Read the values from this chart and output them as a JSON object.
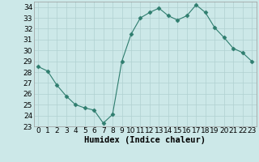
{
  "x": [
    0,
    1,
    2,
    3,
    4,
    5,
    6,
    7,
    8,
    9,
    10,
    11,
    12,
    13,
    14,
    15,
    16,
    17,
    18,
    19,
    20,
    21,
    22,
    23
  ],
  "y": [
    28.5,
    28.1,
    26.8,
    25.8,
    25.0,
    24.7,
    24.5,
    23.3,
    24.1,
    29.0,
    31.5,
    33.0,
    33.5,
    33.9,
    33.2,
    32.8,
    33.2,
    34.2,
    33.5,
    32.1,
    31.2,
    30.2,
    29.8,
    29.0
  ],
  "line_color": "#2e7d6e",
  "marker": "D",
  "marker_size": 2.5,
  "bg_color": "#cce8e8",
  "grid_color": "#b0d0d0",
  "xlabel": "Humidex (Indice chaleur)",
  "xlabel_fontsize": 7.5,
  "tick_fontsize": 6.5,
  "ylim": [
    23,
    34.5
  ],
  "xlim": [
    -0.5,
    23.5
  ],
  "yticks": [
    23,
    24,
    25,
    26,
    27,
    28,
    29,
    30,
    31,
    32,
    33,
    34
  ],
  "xticks": [
    0,
    1,
    2,
    3,
    4,
    5,
    6,
    7,
    8,
    9,
    10,
    11,
    12,
    13,
    14,
    15,
    16,
    17,
    18,
    19,
    20,
    21,
    22,
    23
  ]
}
